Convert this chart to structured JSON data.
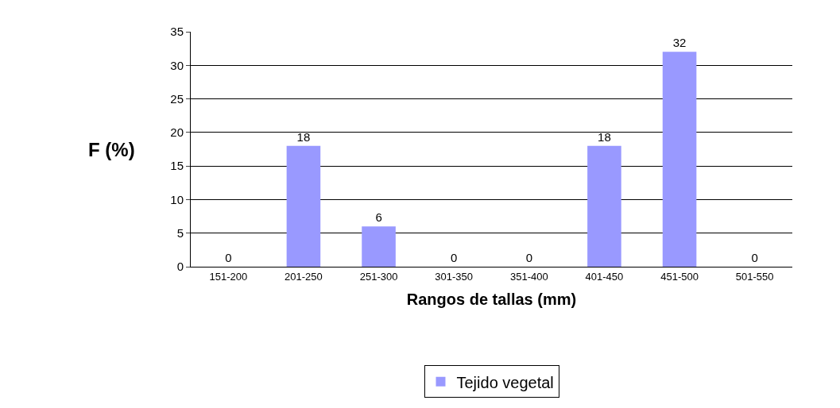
{
  "chart_data": {
    "type": "bar",
    "xlabel": "Rangos de tallas (mm)",
    "ylabel": "F (%)",
    "categories": [
      "151-200",
      "201-250",
      "251-300",
      "301-350",
      "351-400",
      "401-450",
      "451-500",
      "501-550"
    ],
    "series": [
      {
        "name": "Tejido vegetal",
        "color": "#9999ff",
        "values": [
          0,
          18,
          6,
          0,
          0,
          18,
          32,
          0
        ]
      }
    ],
    "ylim": [
      0,
      35
    ],
    "yticks": [
      0,
      5,
      10,
      15,
      20,
      25,
      30,
      35
    ],
    "grid": "y",
    "legend": "bottom",
    "data_labels": true
  }
}
